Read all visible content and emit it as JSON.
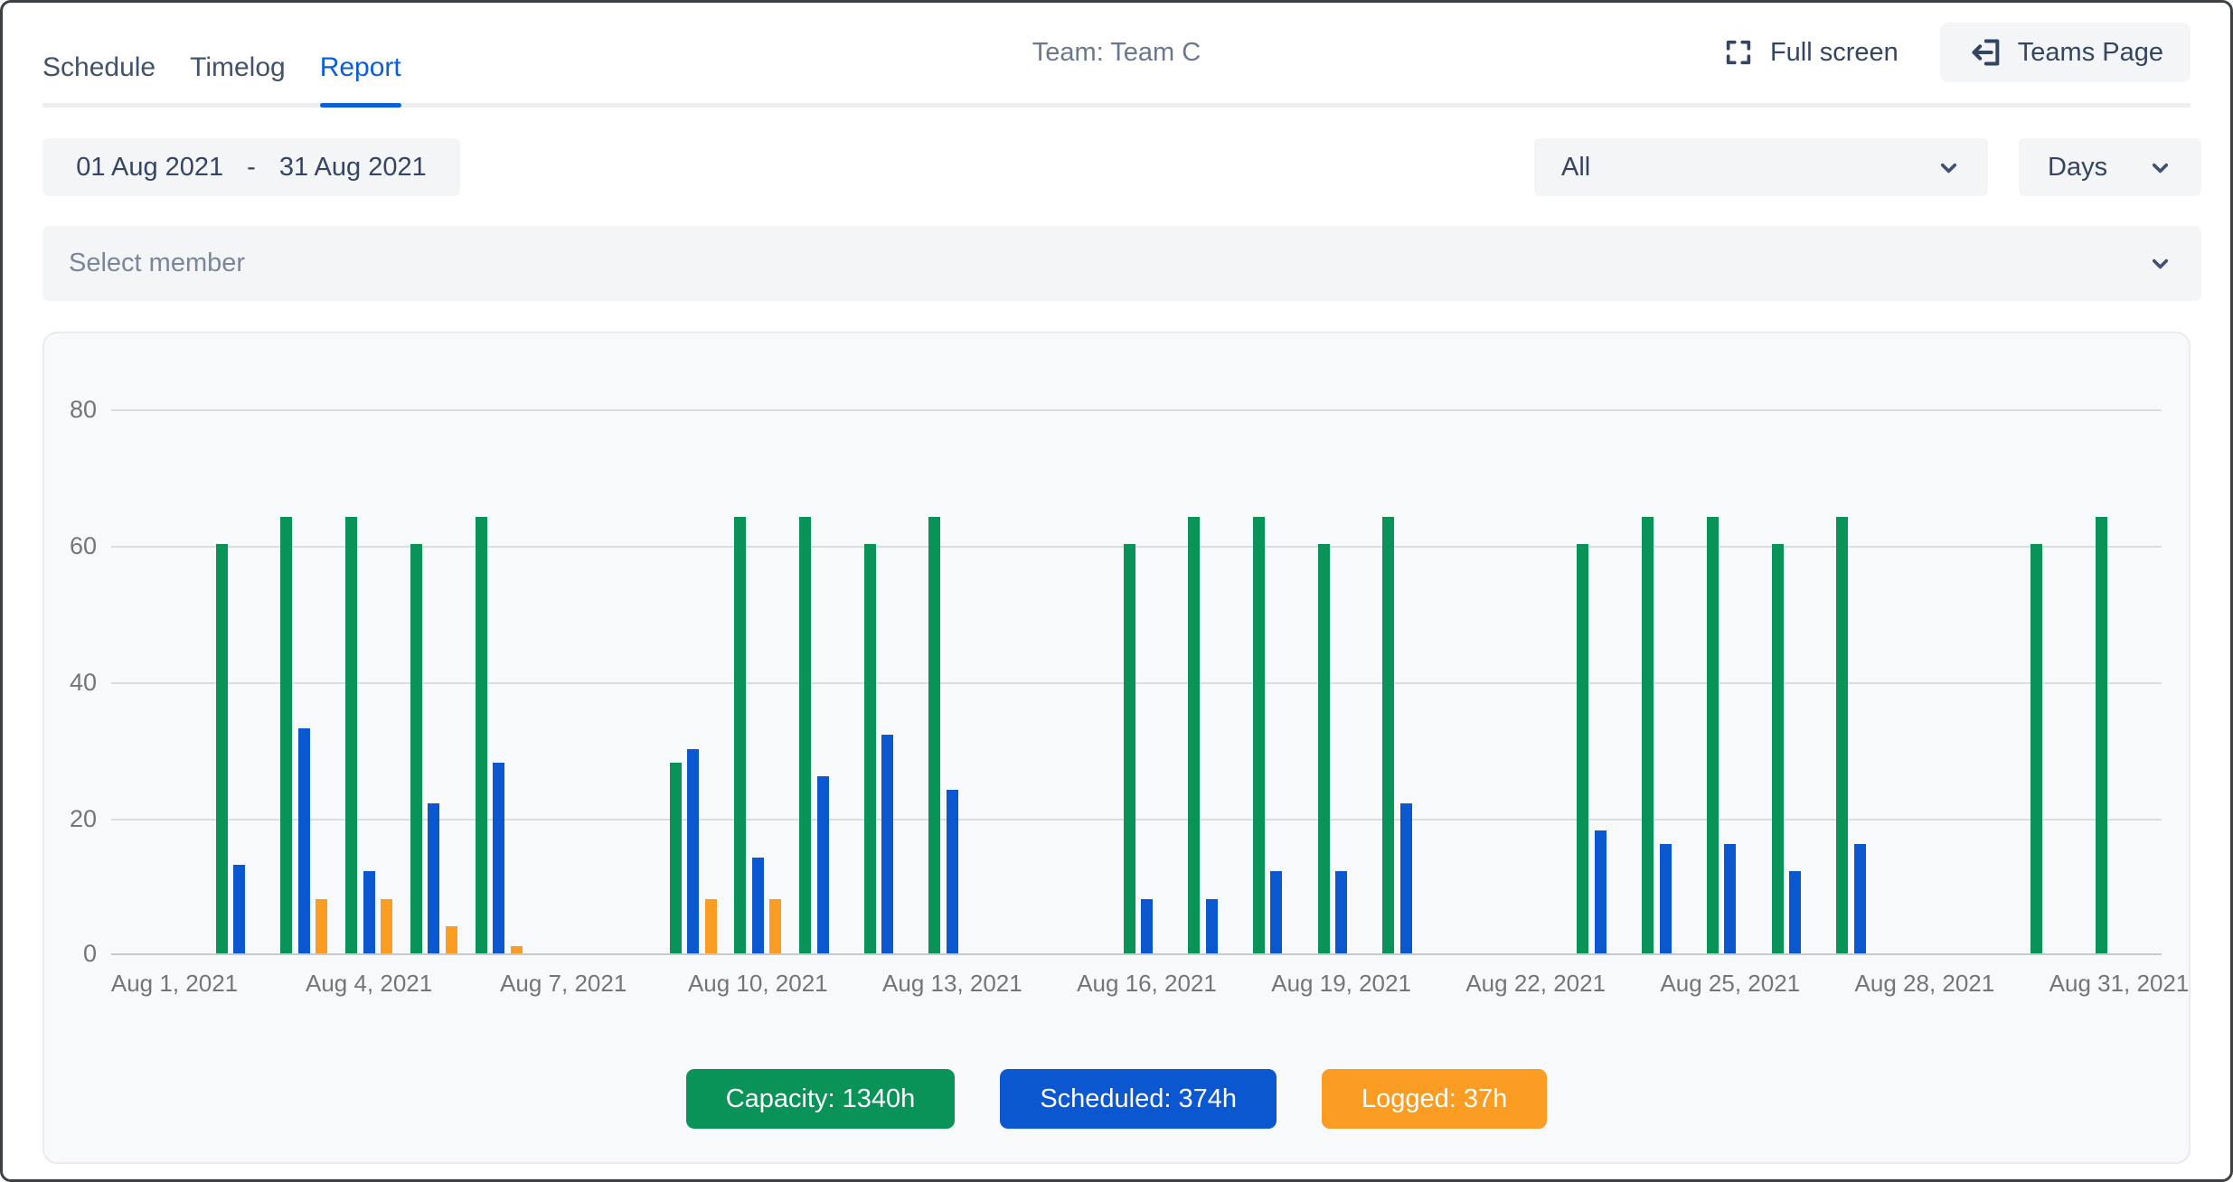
{
  "header": {
    "tabs": [
      {
        "label": "Schedule",
        "active": false
      },
      {
        "label": "Timelog",
        "active": false
      },
      {
        "label": "Report",
        "active": true
      }
    ],
    "title": "Team: Team C",
    "fullscreen_label": "Full screen",
    "teams_page_label": "Teams Page"
  },
  "filters": {
    "date_start": "01 Aug 2021",
    "date_separator": "-",
    "date_end": "31 Aug 2021",
    "scope_value": "All",
    "unit_value": "Days",
    "member_placeholder": "Select member"
  },
  "chart_data": {
    "type": "bar",
    "title": "",
    "xlabel": "",
    "ylabel": "",
    "y_ticks": [
      0,
      20,
      40,
      60,
      80
    ],
    "ylim": [
      0,
      80
    ],
    "grid": true,
    "legend_position": "bottom",
    "x_tick_labels": [
      "Aug 1, 2021",
      "Aug 4, 2021",
      "Aug 7, 2021",
      "Aug 10, 2021",
      "Aug 13, 2021",
      "Aug 16, 2021",
      "Aug 19, 2021",
      "Aug 22, 2021",
      "Aug 25, 2021",
      "Aug 28, 2021",
      "Aug 31, 2021"
    ],
    "x_tick_day_indices": [
      0,
      3,
      6,
      9,
      12,
      15,
      18,
      21,
      24,
      27,
      30
    ],
    "days_in_month": 31,
    "series": [
      {
        "name": "Capacity",
        "color": "#0a9358",
        "total_hours": 1340,
        "values": [
          0,
          60,
          64,
          64,
          60,
          64,
          0,
          0,
          28,
          64,
          64,
          60,
          64,
          0,
          0,
          60,
          64,
          64,
          60,
          64,
          0,
          0,
          60,
          64,
          64,
          60,
          64,
          0,
          0,
          60,
          64
        ]
      },
      {
        "name": "Scheduled",
        "color": "#0b57d0",
        "total_hours": 374,
        "values": [
          0,
          13,
          33,
          12,
          22,
          28,
          0,
          0,
          30,
          14,
          26,
          32,
          24,
          0,
          0,
          8,
          8,
          12,
          12,
          22,
          0,
          0,
          18,
          16,
          16,
          12,
          16,
          0,
          0,
          0,
          0
        ]
      },
      {
        "name": "Logged",
        "color": "#fa9d22",
        "total_hours": 37,
        "values": [
          0,
          0,
          8,
          8,
          4,
          1,
          0,
          0,
          8,
          8,
          0,
          0,
          0,
          0,
          0,
          0,
          0,
          0,
          0,
          0,
          0,
          0,
          0,
          0,
          0,
          0,
          0,
          0,
          0,
          0,
          0
        ]
      }
    ],
    "legend": [
      {
        "label": "Capacity: 1340h",
        "color": "#0a9358"
      },
      {
        "label": "Scheduled: 374h",
        "color": "#0b57d0"
      },
      {
        "label": "Logged: 37h",
        "color": "#fa9d22"
      }
    ]
  },
  "colors": {
    "accent_blue": "#0b5fd9",
    "control_bg": "#f4f5f7",
    "text_dark": "#344563",
    "text_muted": "#6b778c",
    "placeholder": "#7a869a",
    "axis_text": "#757575",
    "gridline": "#dbdde0",
    "card_bg": "#f8f9fb"
  }
}
